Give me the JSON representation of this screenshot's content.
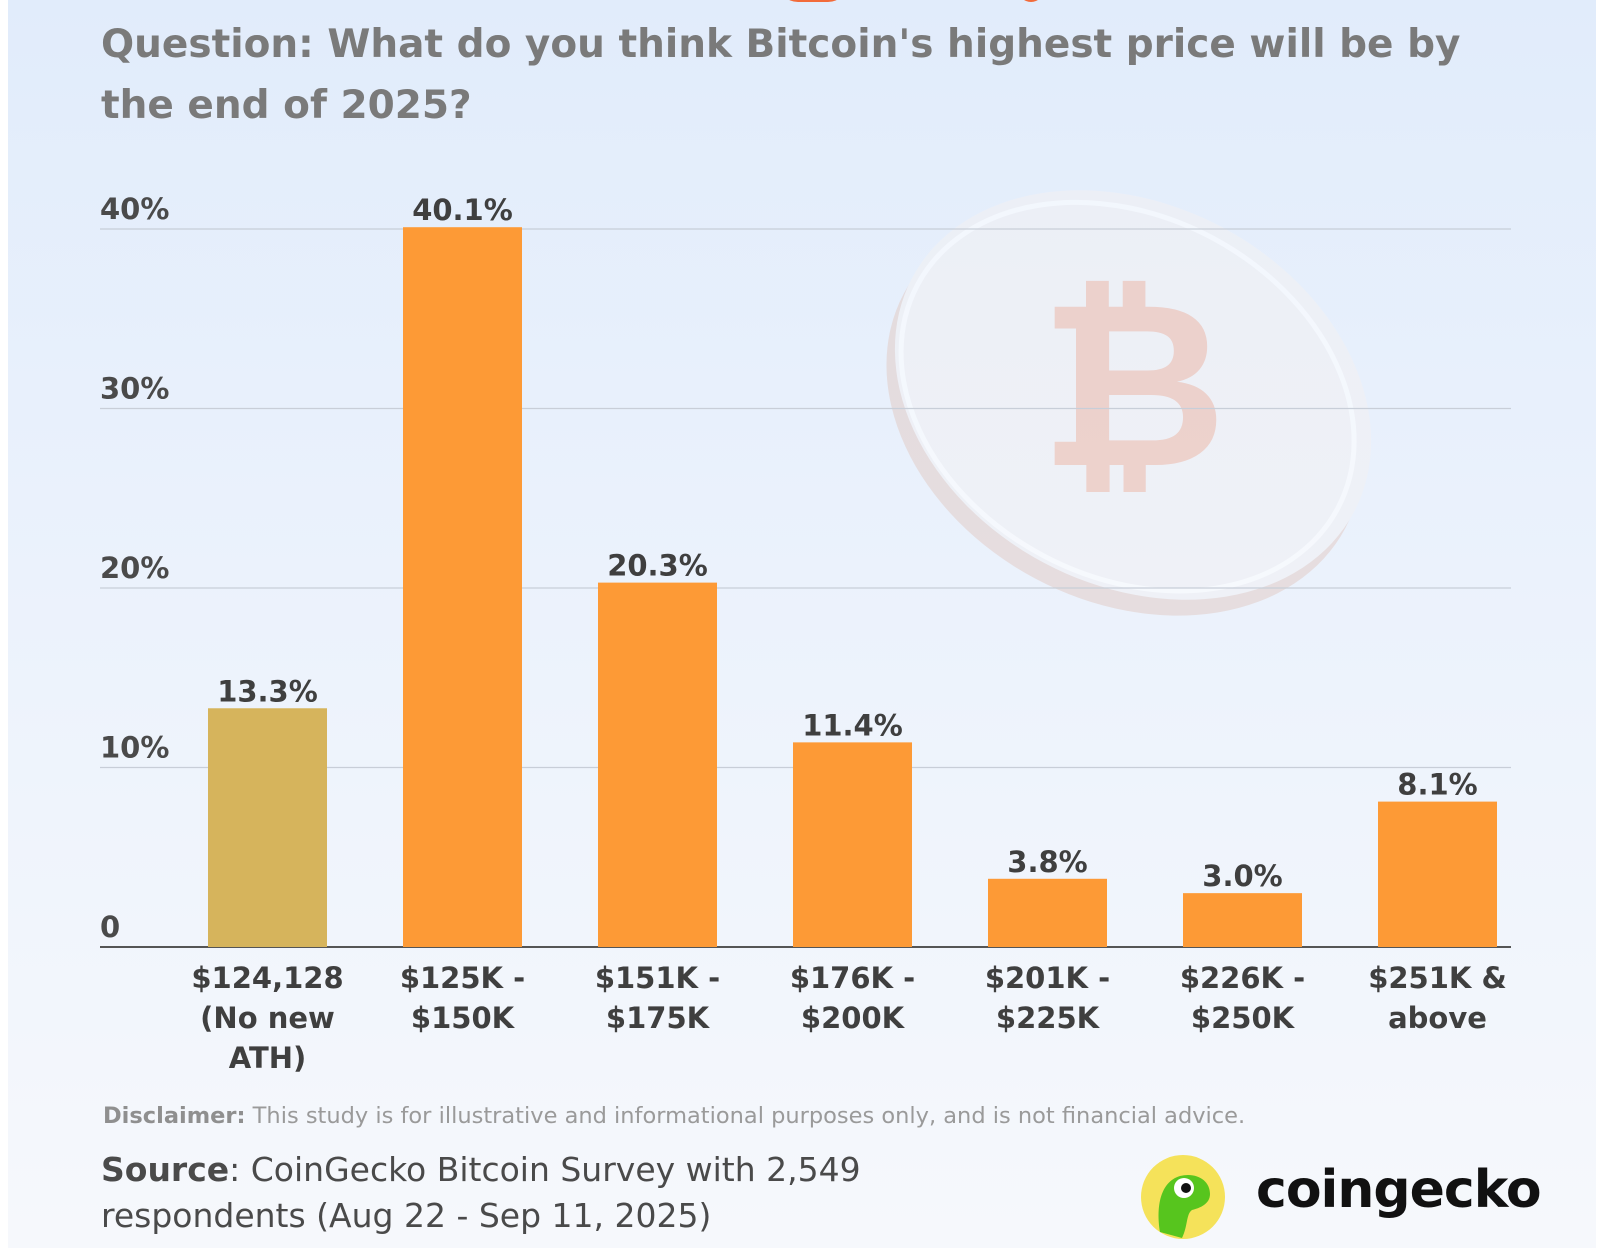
{
  "header": {
    "question": "Question: What do you think Bitcoin's highest price will be by the end of 2025?"
  },
  "chart_data": {
    "type": "bar",
    "categories": [
      [
        "$124,128",
        "(No new",
        "ATH)"
      ],
      [
        "$125K -",
        "$150K"
      ],
      [
        "$151K -",
        "$175K"
      ],
      [
        "$176K -",
        "$200K"
      ],
      [
        "$201K -",
        "$225K"
      ],
      [
        "$226K -",
        "$250K"
      ],
      [
        "$251K &",
        "above"
      ]
    ],
    "values": [
      13.3,
      40.1,
      20.3,
      11.4,
      3.8,
      3.0,
      8.1
    ],
    "value_labels": [
      "13.3%",
      "40.1%",
      "20.3%",
      "11.4%",
      "3.8%",
      "3.0%",
      "8.1%"
    ],
    "bar_colors": [
      "#d6b45c",
      "#fd9a36",
      "#fd9a36",
      "#fd9a36",
      "#fd9a36",
      "#fd9a36",
      "#fd9a36"
    ],
    "ylim": [
      0,
      40
    ],
    "yticks": [
      0,
      10,
      20,
      30,
      40
    ],
    "ytick_labels": [
      "0",
      "10%",
      "20%",
      "30%",
      "40%"
    ],
    "grid": true,
    "xlabel": "",
    "ylabel": ""
  },
  "footer": {
    "disclaimer_label": "Disclaimer:",
    "disclaimer_text": " This study is for illustrative and informational purposes only, and is not financial advice.",
    "source_label": "Source",
    "source_text": ": CoinGecko Bitcoin Survey with 2,549 respondents (Aug 22 - Sep 11, 2025)"
  },
  "brand": {
    "name": "coingecko",
    "logo_icon": "gecko-logo-icon",
    "background_icon": "bitcoin-coin-icon"
  }
}
